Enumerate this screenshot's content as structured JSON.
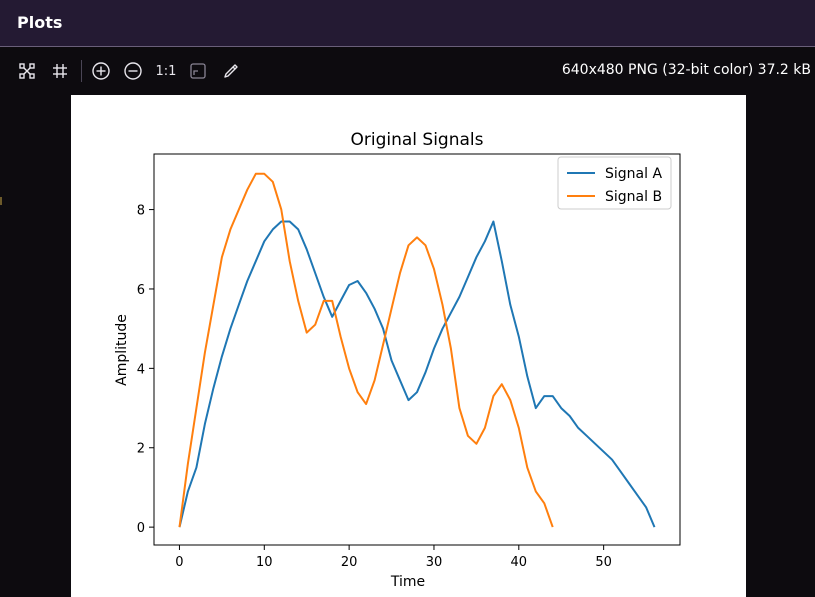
{
  "window": {
    "title": "Plots"
  },
  "toolbar": {
    "icons": [
      "fit-to-window-icon",
      "grid-icon",
      "zoom-in-icon",
      "zoom-out-icon",
      "actual-size-label",
      "background-toggle-icon",
      "color-picker-icon"
    ],
    "actual_size_label": "1:1",
    "image_info": "640x480 PNG (32-bit color) 37.2 kB"
  },
  "colors": {
    "signal_a": "#1f77b4",
    "signal_b": "#ff7f0e",
    "titlebar": "#241a33"
  },
  "chart_data": {
    "type": "line",
    "title": "Original Signals",
    "xlabel": "Time",
    "ylabel": "Amplitude",
    "xlim": [
      -3,
      59
    ],
    "ylim": [
      -0.45,
      9.4
    ],
    "x_ticks": [
      0,
      10,
      20,
      30,
      40,
      50
    ],
    "y_ticks": [
      0,
      2,
      4,
      6,
      8
    ],
    "grid": false,
    "legend_position": "top-right",
    "series": [
      {
        "name": "Signal A",
        "color": "#1f77b4",
        "x": [
          0,
          1,
          2,
          3,
          4,
          5,
          6,
          7,
          8,
          9,
          10,
          11,
          12,
          13,
          14,
          15,
          16,
          17,
          18,
          19,
          20,
          21,
          22,
          23,
          24,
          25,
          26,
          27,
          28,
          29,
          30,
          31,
          32,
          33,
          34,
          35,
          36,
          37,
          38,
          39,
          40,
          41,
          42,
          43,
          44,
          45,
          46,
          47,
          48,
          49,
          50,
          51,
          52,
          53,
          54,
          55,
          56
        ],
        "y": [
          0,
          0.9,
          1.5,
          2.6,
          3.5,
          4.3,
          5.0,
          5.6,
          6.2,
          6.7,
          7.2,
          7.5,
          7.7,
          7.7,
          7.5,
          7.0,
          6.4,
          5.8,
          5.3,
          5.7,
          6.1,
          6.2,
          5.9,
          5.5,
          5.0,
          4.2,
          3.7,
          3.2,
          3.4,
          3.9,
          4.5,
          5.0,
          5.4,
          5.8,
          6.3,
          6.8,
          7.2,
          7.7,
          6.7,
          5.6,
          4.8,
          3.8,
          3.0,
          3.3,
          3.3,
          3.0,
          2.8,
          2.5,
          2.3,
          2.1,
          1.9,
          1.7,
          1.4,
          1.1,
          0.8,
          0.5,
          0
        ]
      },
      {
        "name": "Signal B",
        "color": "#ff7f0e",
        "x": [
          0,
          1,
          2,
          3,
          4,
          5,
          6,
          7,
          8,
          9,
          10,
          11,
          12,
          13,
          14,
          15,
          16,
          17,
          18,
          19,
          20,
          21,
          22,
          23,
          24,
          25,
          26,
          27,
          28,
          29,
          30,
          31,
          32,
          33,
          34,
          35,
          36,
          37,
          38,
          39,
          40,
          41,
          42,
          43,
          44
        ],
        "y": [
          0,
          1.6,
          3.0,
          4.4,
          5.6,
          6.8,
          7.5,
          8.0,
          8.5,
          8.9,
          8.9,
          8.7,
          8.0,
          6.7,
          5.7,
          4.9,
          5.1,
          5.7,
          5.7,
          4.8,
          4.0,
          3.4,
          3.1,
          3.7,
          4.6,
          5.5,
          6.4,
          7.1,
          7.3,
          7.1,
          6.5,
          5.6,
          4.5,
          3.0,
          2.3,
          2.1,
          2.5,
          3.3,
          3.6,
          3.2,
          2.5,
          1.5,
          0.9,
          0.6,
          0
        ]
      }
    ]
  }
}
